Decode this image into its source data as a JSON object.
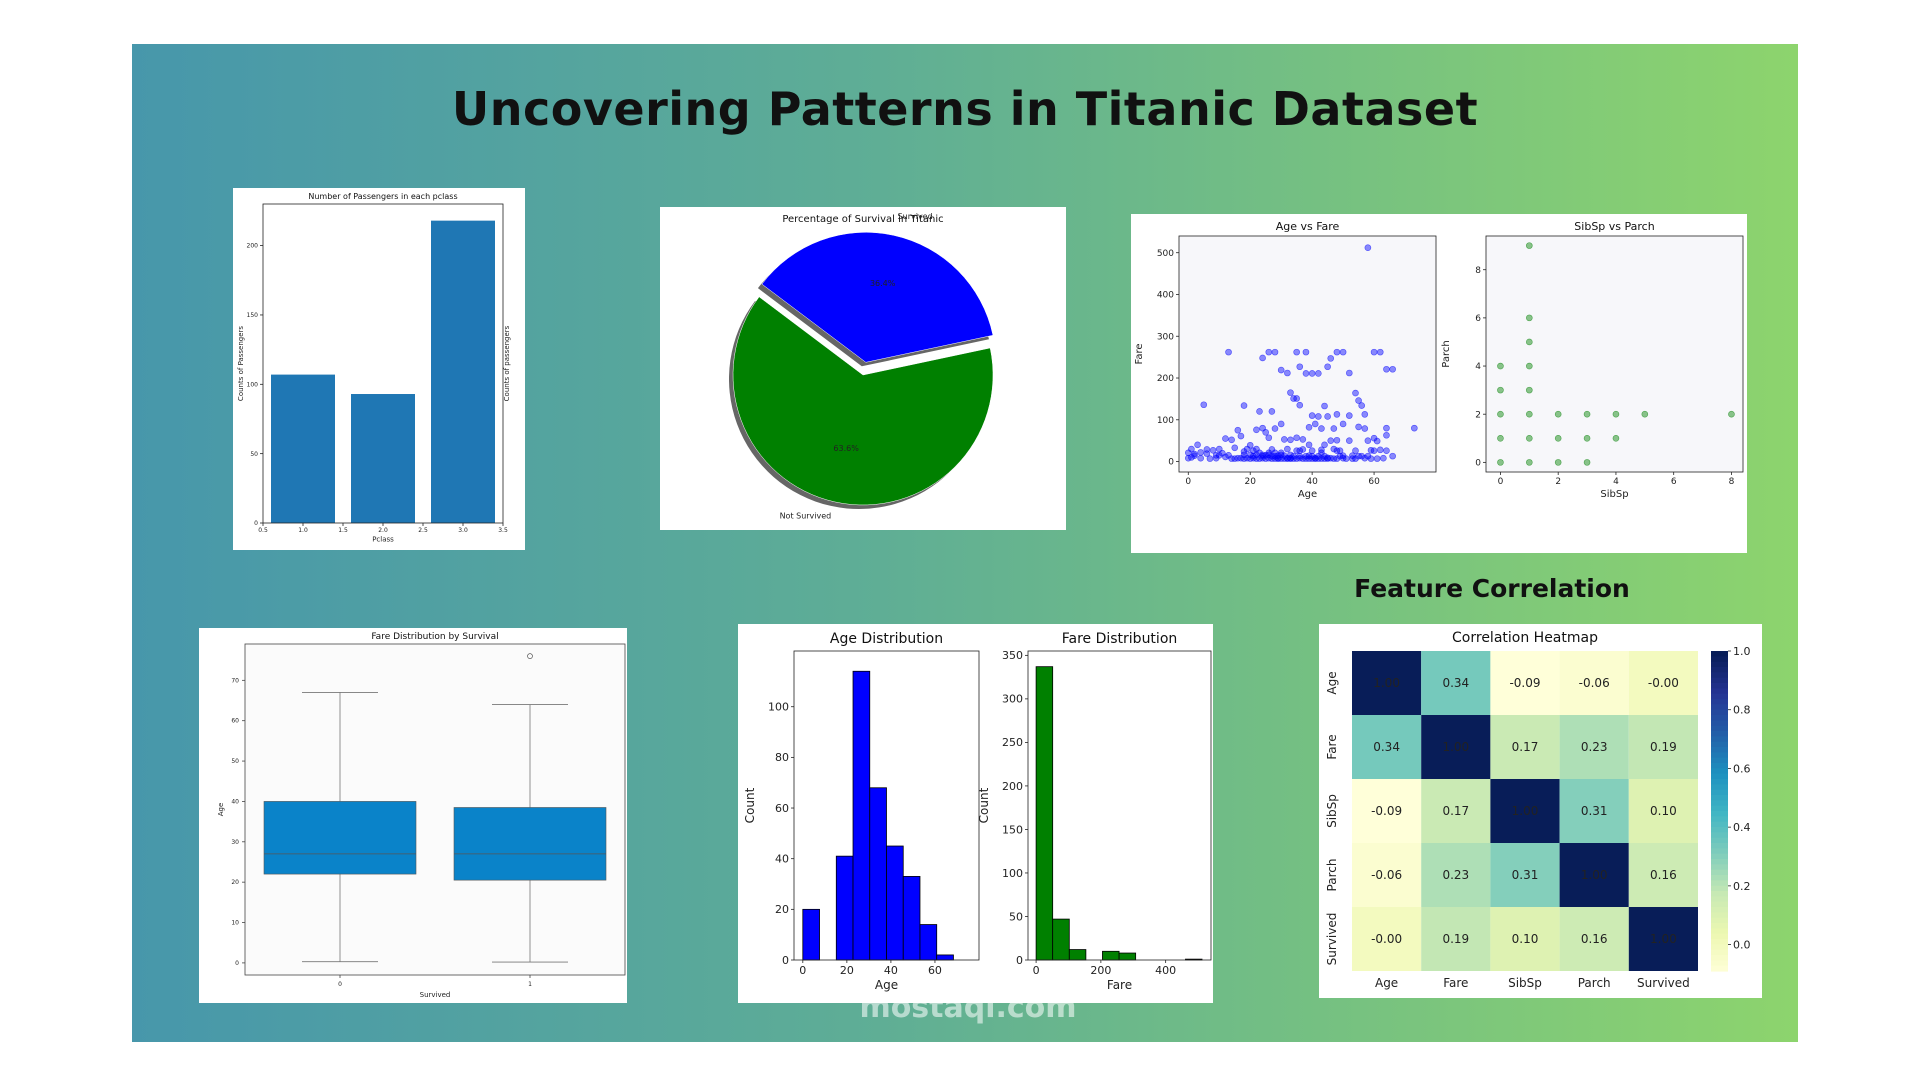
{
  "page": {
    "title": "Uncovering Patterns in Titanic Dataset",
    "section_title": "Feature Correlation",
    "watermark": "mostaql.com"
  },
  "chart_data": [
    {
      "id": "pclass",
      "type": "bar",
      "title": "Number of Passengers in each pclass",
      "xlabel": "Pclass",
      "ylabel": "Counts of Passengers",
      "ylabel_right": "Counts of passengers",
      "x": [
        1,
        2,
        3
      ],
      "values": [
        107,
        93,
        218
      ],
      "xlim": [
        0.5,
        3.5
      ],
      "ylim": [
        0,
        230
      ],
      "xticks": [
        "0.5",
        "1.0",
        "1.5",
        "2.0",
        "2.5",
        "3.0",
        "3.5"
      ],
      "yticks": [
        0,
        50,
        100,
        150,
        200
      ],
      "color": "#1f77b4"
    },
    {
      "id": "survival",
      "type": "pie",
      "title": "Percentage of Survival in Titanic",
      "labels": [
        "Survived",
        "Not Survived"
      ],
      "values": [
        36.4,
        63.6
      ],
      "pct_labels": [
        "36.4%",
        "63.6%"
      ],
      "colors": [
        "#0000ff",
        "#008000"
      ]
    },
    {
      "id": "age_fare",
      "type": "scatter",
      "title": "Age vs Fare",
      "xlabel": "Age",
      "ylabel": "Fare",
      "xlim": [
        -3,
        80
      ],
      "ylim": [
        -25,
        540
      ],
      "xticks": [
        0,
        20,
        40,
        60
      ],
      "yticks": [
        0,
        100,
        200,
        300,
        400,
        500
      ],
      "color": "#0000ff",
      "points": [
        [
          58,
          512
        ],
        [
          13,
          262
        ],
        [
          26,
          262
        ],
        [
          28,
          262
        ],
        [
          35,
          262
        ],
        [
          38,
          262
        ],
        [
          48,
          262
        ],
        [
          50,
          262
        ],
        [
          52,
          212
        ],
        [
          36,
          227
        ],
        [
          46,
          247
        ],
        [
          60,
          262
        ],
        [
          62,
          262
        ],
        [
          64,
          221
        ],
        [
          66,
          221
        ],
        [
          24,
          248
        ],
        [
          30,
          219
        ],
        [
          32,
          212
        ],
        [
          38,
          211
        ],
        [
          40,
          211
        ],
        [
          42,
          211
        ],
        [
          45,
          227
        ],
        [
          55,
          146
        ],
        [
          56,
          134
        ],
        [
          57,
          113
        ],
        [
          54,
          164
        ],
        [
          5,
          136
        ],
        [
          18,
          134
        ],
        [
          23,
          120
        ],
        [
          27,
          120
        ],
        [
          34,
          151
        ],
        [
          35,
          151
        ],
        [
          36,
          135
        ],
        [
          44,
          133
        ],
        [
          48,
          113
        ],
        [
          33,
          165
        ],
        [
          40,
          110
        ],
        [
          42,
          108
        ],
        [
          45,
          108
        ],
        [
          52,
          110
        ],
        [
          50,
          90
        ],
        [
          55,
          83
        ],
        [
          57,
          79
        ],
        [
          64,
          80
        ],
        [
          64,
          63
        ],
        [
          73,
          80
        ],
        [
          60,
          56
        ],
        [
          47,
          79
        ],
        [
          39,
          82
        ],
        [
          41,
          90
        ],
        [
          43,
          79
        ],
        [
          30,
          90
        ],
        [
          28,
          79
        ],
        [
          22,
          76
        ],
        [
          24,
          80
        ],
        [
          16,
          75
        ],
        [
          17,
          61
        ],
        [
          25,
          70
        ],
        [
          26,
          57
        ],
        [
          35,
          57
        ],
        [
          12,
          55
        ],
        [
          14,
          52
        ],
        [
          31,
          53
        ],
        [
          33,
          52
        ],
        [
          37,
          53
        ],
        [
          46,
          50
        ],
        [
          48,
          51
        ],
        [
          52,
          50
        ],
        [
          58,
          50
        ],
        [
          61,
          49
        ],
        [
          39,
          40
        ],
        [
          44,
          40
        ],
        [
          20,
          39
        ],
        [
          3,
          40
        ],
        [
          1,
          30
        ],
        [
          8,
          27
        ],
        [
          10,
          30
        ],
        [
          15,
          33
        ],
        [
          19,
          30
        ],
        [
          22,
          30
        ],
        [
          27,
          29
        ],
        [
          32,
          30
        ],
        [
          37,
          29
        ],
        [
          43,
          28
        ],
        [
          47,
          30
        ],
        [
          54,
          26
        ],
        [
          59,
          27
        ],
        [
          62,
          28
        ],
        [
          0,
          21
        ],
        [
          2,
          18
        ],
        [
          4,
          22
        ],
        [
          6,
          19
        ],
        [
          9,
          15
        ],
        [
          11,
          20
        ],
        [
          13,
          15
        ],
        [
          18,
          24
        ],
        [
          21,
          13
        ],
        [
          23,
          21
        ],
        [
          25,
          15
        ],
        [
          26,
          21
        ],
        [
          28,
          13
        ],
        [
          29,
          8
        ],
        [
          30,
          21
        ],
        [
          31,
          14
        ],
        [
          32,
          8
        ],
        [
          33,
          7
        ],
        [
          34,
          13
        ],
        [
          36,
          8
        ],
        [
          38,
          13
        ],
        [
          40,
          7
        ],
        [
          41,
          8
        ],
        [
          42,
          13
        ],
        [
          44,
          7
        ],
        [
          45,
          9
        ],
        [
          48,
          26
        ],
        [
          49,
          13
        ],
        [
          50,
          8
        ],
        [
          53,
          14
        ],
        [
          55,
          13
        ],
        [
          57,
          8
        ],
        [
          60,
          26
        ],
        [
          63,
          8
        ],
        [
          66,
          13
        ],
        [
          0,
          8
        ],
        [
          1,
          10
        ],
        [
          2,
          14
        ],
        [
          4,
          8
        ],
        [
          6,
          29
        ],
        [
          7,
          7
        ],
        [
          9,
          8
        ],
        [
          10,
          15
        ],
        [
          12,
          11
        ],
        [
          14,
          7
        ],
        [
          15,
          7
        ],
        [
          16,
          8
        ],
        [
          17,
          8
        ],
        [
          18,
          7
        ],
        [
          19,
          8
        ],
        [
          20,
          7
        ],
        [
          21,
          8
        ],
        [
          22,
          7
        ],
        [
          23,
          7
        ],
        [
          24,
          8
        ],
        [
          24,
          13
        ],
        [
          25,
          7
        ],
        [
          26,
          8
        ],
        [
          27,
          7
        ],
        [
          27,
          13
        ],
        [
          28,
          7
        ],
        [
          29,
          7
        ],
        [
          29,
          14
        ],
        [
          30,
          7
        ],
        [
          31,
          7
        ],
        [
          32,
          7
        ],
        [
          33,
          8
        ],
        [
          34,
          7
        ],
        [
          35,
          7
        ],
        [
          35,
          26
        ],
        [
          36,
          13
        ],
        [
          37,
          7
        ],
        [
          38,
          7
        ],
        [
          39,
          7
        ],
        [
          39,
          14
        ],
        [
          40,
          13
        ],
        [
          41,
          7
        ],
        [
          42,
          7
        ],
        [
          43,
          7
        ],
        [
          44,
          13
        ],
        [
          45,
          7
        ],
        [
          46,
          8
        ],
        [
          47,
          7
        ],
        [
          48,
          7
        ],
        [
          49,
          26
        ],
        [
          50,
          14
        ],
        [
          51,
          7
        ],
        [
          53,
          7
        ],
        [
          54,
          7
        ],
        [
          56,
          13
        ],
        [
          58,
          13
        ],
        [
          59,
          7
        ],
        [
          61,
          7
        ],
        [
          64,
          26
        ],
        [
          20,
          16
        ],
        [
          21,
          26
        ],
        [
          18,
          16
        ],
        [
          26,
          16
        ],
        [
          30,
          16
        ],
        [
          24,
          16
        ],
        [
          22,
          16
        ],
        [
          33,
          16
        ],
        [
          28,
          21
        ],
        [
          43,
          21
        ],
        [
          40,
          26
        ],
        [
          36,
          26
        ]
      ]
    },
    {
      "id": "sibsp_parch",
      "type": "scatter",
      "title": "SibSp vs Parch",
      "xlabel": "SibSp",
      "ylabel": "Parch",
      "xlim": [
        -0.5,
        8.4
      ],
      "ylim": [
        -0.4,
        9.4
      ],
      "xticks": [
        0,
        2,
        4,
        6,
        8
      ],
      "yticks": [
        0,
        2,
        4,
        6,
        8
      ],
      "color": "#008000",
      "points": [
        [
          0,
          0
        ],
        [
          1,
          0
        ],
        [
          2,
          0
        ],
        [
          3,
          0
        ],
        [
          0,
          1
        ],
        [
          1,
          1
        ],
        [
          2,
          1
        ],
        [
          3,
          1
        ],
        [
          4,
          1
        ],
        [
          0,
          2
        ],
        [
          1,
          2
        ],
        [
          2,
          2
        ],
        [
          3,
          2
        ],
        [
          4,
          2
        ],
        [
          5,
          2
        ],
        [
          8,
          2
        ],
        [
          0,
          3
        ],
        [
          1,
          3
        ],
        [
          0,
          4
        ],
        [
          1,
          4
        ],
        [
          1,
          5
        ],
        [
          1,
          6
        ],
        [
          1,
          9
        ]
      ]
    },
    {
      "id": "fare_box",
      "type": "box",
      "title": "Fare Distribution by Survival",
      "xlabel": "Survived",
      "ylabel": "Age",
      "categories": [
        "0",
        "1"
      ],
      "ylim": [
        -3,
        79
      ],
      "yticks": [
        0,
        10,
        20,
        30,
        40,
        50,
        60,
        70
      ],
      "boxes": [
        {
          "min": 0.3,
          "q1": 22,
          "median": 27,
          "q3": 40,
          "max": 67,
          "outliers": []
        },
        {
          "min": 0.2,
          "q1": 20.5,
          "median": 27,
          "q3": 38.5,
          "max": 64,
          "outliers": [
            76
          ]
        }
      ],
      "color": "#0a83c9"
    },
    {
      "id": "age_hist",
      "type": "histogram",
      "title": "Age Distribution",
      "xlabel": "Age",
      "ylabel": "Count",
      "xlim": [
        -4,
        80
      ],
      "ylim": [
        0,
        122
      ],
      "xticks": [
        0,
        20,
        40,
        60
      ],
      "yticks": [
        0,
        20,
        40,
        60,
        80,
        100
      ],
      "bin_edges": [
        0,
        7.6,
        15.2,
        22.8,
        30.4,
        38,
        45.6,
        53.2,
        60.8,
        68.4,
        76
      ],
      "values": [
        20,
        0,
        41,
        114,
        68,
        45,
        33,
        14,
        2,
        0
      ],
      "color": "#0000ff"
    },
    {
      "id": "fare_hist",
      "type": "histogram",
      "title": "Fare Distribution",
      "xlabel": "Fare",
      "ylabel": "Count",
      "xlim": [
        -25,
        540
      ],
      "ylim": [
        0,
        355
      ],
      "xticks": [
        0,
        200,
        400
      ],
      "yticks": [
        0,
        50,
        100,
        150,
        200,
        250,
        300,
        350
      ],
      "bin_edges": [
        0,
        51.2,
        102.5,
        153.7,
        204.9,
        256.2,
        307.4,
        358.6,
        409.9,
        461.1,
        512.3
      ],
      "values": [
        337,
        47,
        12,
        0,
        10,
        8,
        0,
        0,
        0,
        1
      ],
      "color": "#008000"
    },
    {
      "id": "corr",
      "type": "heatmap",
      "title": "Correlation Heatmap",
      "labels": [
        "Age",
        "Fare",
        "SibSp",
        "Parch",
        "Survived"
      ],
      "matrix": [
        [
          1.0,
          0.34,
          -0.09,
          -0.06,
          -0.0
        ],
        [
          0.34,
          1.0,
          0.17,
          0.23,
          0.19
        ],
        [
          -0.09,
          0.17,
          1.0,
          0.31,
          0.1
        ],
        [
          -0.06,
          0.23,
          0.31,
          1.0,
          0.16
        ],
        [
          -0.0,
          0.19,
          0.1,
          0.16,
          1.0
        ]
      ],
      "cells": [
        [
          "1.00",
          "0.34",
          "-0.09",
          "-0.06",
          "-0.00"
        ],
        [
          "0.34",
          "1.00",
          "0.17",
          "0.23",
          "0.19"
        ],
        [
          "-0.09",
          "0.17",
          "1.00",
          "0.31",
          "0.10"
        ],
        [
          "-0.06",
          "0.23",
          "0.31",
          "1.00",
          "0.16"
        ],
        [
          "-0.00",
          "0.19",
          "0.10",
          "0.16",
          "1.00"
        ]
      ],
      "vmin": -0.09,
      "vmax": 1.0,
      "colorbar_ticks": [
        "0.0",
        "0.2",
        "0.4",
        "0.6",
        "0.8",
        "1.0"
      ],
      "colormap": "YlGnBu"
    }
  ]
}
